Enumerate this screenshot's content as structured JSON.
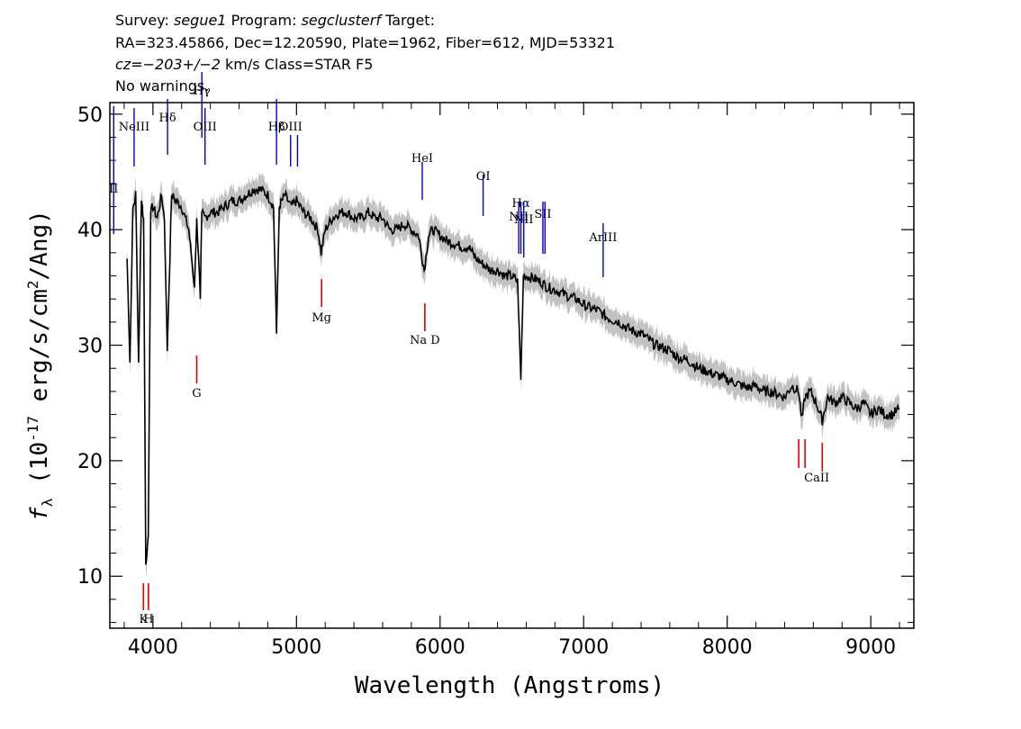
{
  "header": {
    "line1": {
      "survey_label": "Survey:",
      "survey": "segue1",
      "program_label": "Program:",
      "program": "segclusterf",
      "target_label": "Target:"
    },
    "line2": "RA=323.45866, Dec=12.20590, Plate=1962, Fiber=612, MJD=53321",
    "line3": {
      "cz_label": "cz=",
      "cz": "−203+/−2",
      "rest": "km/s Class=STAR F5"
    },
    "line4": "No warnings."
  },
  "chart_data": {
    "type": "line",
    "title": "",
    "xlabel": "Wavelength (Angstroms)",
    "ylabel": "fλ (10⁻¹⁷ erg/s/cm²/Ang)",
    "xlim": [
      3700,
      9300
    ],
    "ylim": [
      5.5,
      51
    ],
    "x_ticks": [
      4000,
      5000,
      6000,
      7000,
      8000,
      9000
    ],
    "y_ticks": [
      10,
      20,
      30,
      40,
      50
    ],
    "series": [
      {
        "color": "#000000",
        "x": [
          3820,
          3840,
          3860,
          3880,
          3900,
          3920,
          3935,
          3950,
          3968,
          3985,
          4000,
          4030,
          4060,
          4080,
          4100,
          4130,
          4160,
          4200,
          4250,
          4290,
          4305,
          4330,
          4340,
          4360,
          4400,
          4450,
          4500,
          4550,
          4600,
          4650,
          4700,
          4750,
          4800,
          4840,
          4861,
          4880,
          4920,
          4960,
          5000,
          5050,
          5100,
          5150,
          5172,
          5200,
          5250,
          5300,
          5350,
          5400,
          5450,
          5500,
          5550,
          5600,
          5650,
          5700,
          5750,
          5800,
          5850,
          5890,
          5920,
          5950,
          6000,
          6050,
          6100,
          6150,
          6200,
          6250,
          6300,
          6350,
          6400,
          6450,
          6500,
          6540,
          6563,
          6580,
          6600,
          6650,
          6700,
          6750,
          6800,
          6850,
          6900,
          6950,
          7000,
          7050,
          7100,
          7150,
          7200,
          7250,
          7300,
          7350,
          7400,
          7450,
          7500,
          7550,
          7600,
          7650,
          7700,
          7750,
          7800,
          7850,
          7900,
          7950,
          8000,
          8050,
          8100,
          8150,
          8200,
          8250,
          8300,
          8350,
          8400,
          8450,
          8498,
          8520,
          8542,
          8580,
          8620,
          8662,
          8700,
          8750,
          8800,
          8850,
          8900,
          8950,
          9000,
          9050,
          9100,
          9150,
          9200
        ],
        "values": [
          37.5,
          28.5,
          41.8,
          43.0,
          28.5,
          42.5,
          41.0,
          11.0,
          13.5,
          41.5,
          42.0,
          41.0,
          43.0,
          41.0,
          29.5,
          43.0,
          42.5,
          42.0,
          40.0,
          35.0,
          41.0,
          34.0,
          41.5,
          41.0,
          41.5,
          41.5,
          42.0,
          42.5,
          42.5,
          43.0,
          43.5,
          43.5,
          43.0,
          42.0,
          31.0,
          42.0,
          43.0,
          42.0,
          42.5,
          41.5,
          41.0,
          40.0,
          38.0,
          40.0,
          41.0,
          41.5,
          41.5,
          41.0,
          41.0,
          41.5,
          41.0,
          41.0,
          40.0,
          40.0,
          40.5,
          40.0,
          39.5,
          36.5,
          39.5,
          40.0,
          39.5,
          39.0,
          38.8,
          38.5,
          38.5,
          37.5,
          37.0,
          36.5,
          36.5,
          36.0,
          36.0,
          35.5,
          27.0,
          36.0,
          36.0,
          35.8,
          35.5,
          35.0,
          34.8,
          34.5,
          34.2,
          34.0,
          33.5,
          33.2,
          33.0,
          32.5,
          32.2,
          32.0,
          31.5,
          31.2,
          31.0,
          30.5,
          30.0,
          29.8,
          29.5,
          29.0,
          28.8,
          28.5,
          28.0,
          27.8,
          27.5,
          27.3,
          27.0,
          26.8,
          26.5,
          26.3,
          26.5,
          26.0,
          26.0,
          25.8,
          25.5,
          26.5,
          26.0,
          23.5,
          25.5,
          26.0,
          25.0,
          23.5,
          25.5,
          25.0,
          25.5,
          25.0,
          24.5,
          25.0,
          24.0,
          24.5,
          24.0,
          24.0,
          24.5
        ]
      }
    ],
    "line_labels": {
      "emission": [
        {
          "name": "ḪII",
          "x": 3727,
          "text": "II"
        },
        {
          "name": "NeIII",
          "x": 3869,
          "text": "NeIII"
        },
        {
          "name": "Hdelta",
          "x": 4102,
          "text": "Hδ"
        },
        {
          "name": "Hgamma",
          "x": 4341,
          "text": "Hγ"
        },
        {
          "name": "OIII-4363",
          "x": 4363,
          "text": "OIII"
        },
        {
          "name": "Hbeta",
          "x": 4861,
          "text": "Hβ"
        },
        {
          "name": "OIII-4959",
          "x": 4959,
          "text": "OIII"
        },
        {
          "name": "OIII-5007",
          "x": 5007,
          "text": ""
        },
        {
          "name": "HeI",
          "x": 5876,
          "text": "HeI"
        },
        {
          "name": "OI",
          "x": 6300,
          "text": "OI"
        },
        {
          "name": "NII-6548",
          "x": 6548,
          "text": "NII"
        },
        {
          "name": "Halpha",
          "x": 6563,
          "text": "Hα"
        },
        {
          "name": "NII-6583",
          "x": 6583,
          "text": "NII"
        },
        {
          "name": "SII-6716",
          "x": 6716,
          "text": "SII"
        },
        {
          "name": "SII-6731",
          "x": 6731,
          "text": ""
        },
        {
          "name": "ArIII",
          "x": 7136,
          "text": "ArIII"
        }
      ],
      "absorption": [
        {
          "name": "K",
          "x": 3934,
          "text": "K"
        },
        {
          "name": "H",
          "x": 3969,
          "text": "H"
        },
        {
          "name": "G",
          "x": 4305,
          "text": "G"
        },
        {
          "name": "Mg",
          "x": 5175,
          "text": "Mg"
        },
        {
          "name": "NaD",
          "x": 5894,
          "text": "Na  D"
        },
        {
          "name": "CaII-8498",
          "x": 8498,
          "text": "CaII"
        },
        {
          "name": "CaII-8542",
          "x": 8542,
          "text": ""
        },
        {
          "name": "CaII-8662",
          "x": 8662,
          "text": ""
        }
      ]
    },
    "colors": {
      "flux": "#000000",
      "error": "#bbbbbb",
      "emission": "#0000cc",
      "absorption": "#dd0000"
    }
  }
}
